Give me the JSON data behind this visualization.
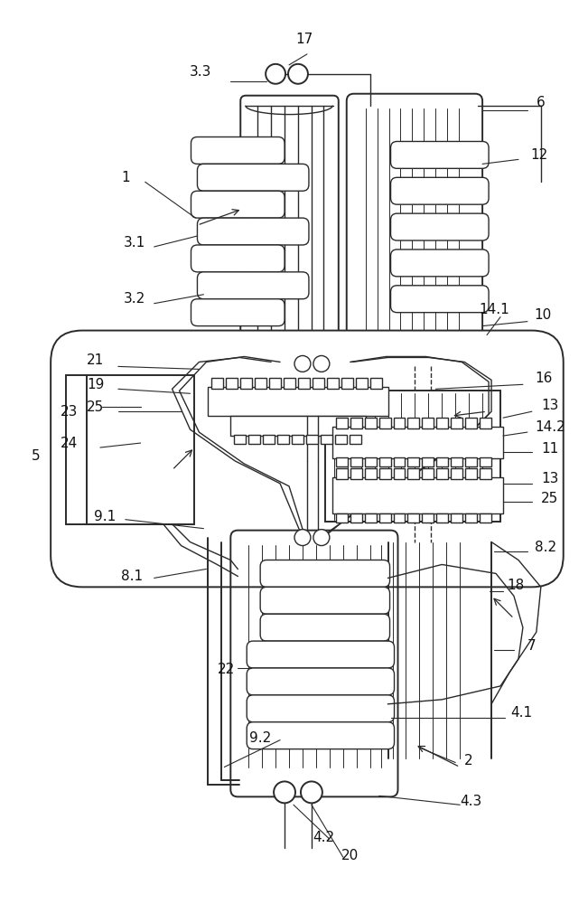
{
  "bg_color": "#ffffff",
  "line_color": "#2a2a2a",
  "label_color": "#111111",
  "fig_width": 6.51,
  "fig_height": 10.0,
  "dpi": 100
}
